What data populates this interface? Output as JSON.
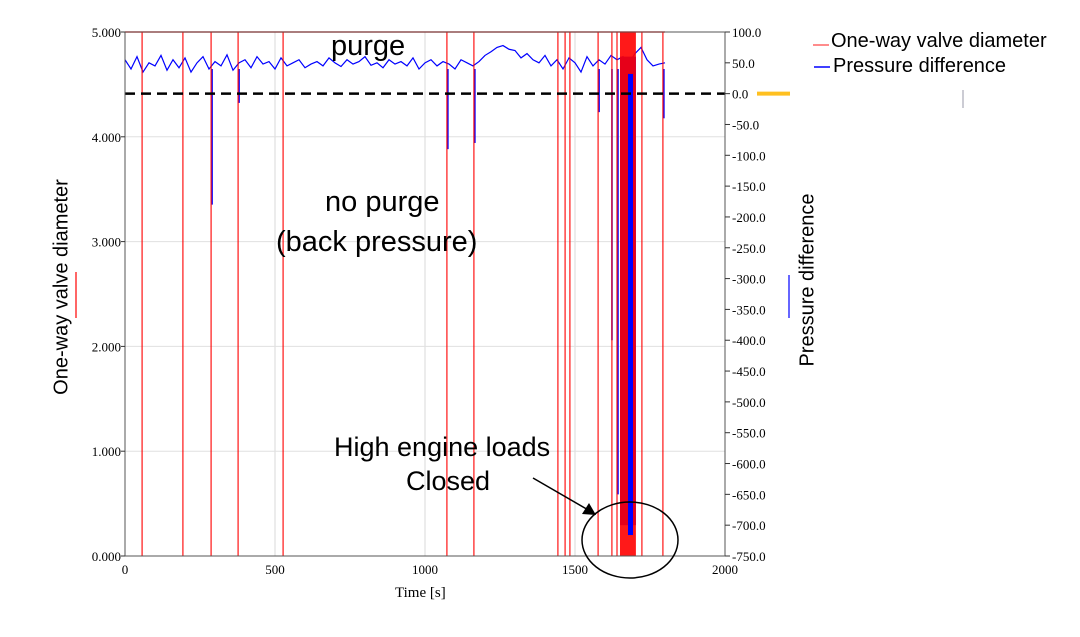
{
  "chart_data": {
    "type": "line",
    "xlabel": "Time [s]",
    "ylabel_left": "One-way valve diameter",
    "ylabel_right": "Pressure difference",
    "xlim": [
      0,
      2000
    ],
    "ylim_left": [
      0,
      5
    ],
    "ylim_right": [
      -750,
      100
    ],
    "x_ticks": [
      "0",
      "500",
      "1000",
      "1500",
      "2000"
    ],
    "left_ticks": [
      "0.000",
      "1.000",
      "2.000",
      "3.000",
      "4.000",
      "5.000"
    ],
    "right_ticks": [
      "100.0",
      "50.0",
      "0.0",
      "-50.0",
      "-100.0",
      "-150.0",
      "-200.0",
      "-250.0",
      "-300.0",
      "-350.0",
      "-400.0",
      "-450.0",
      "-500.0",
      "-550.0",
      "-600.0",
      "-650.0",
      "-700.0",
      "-750.0"
    ],
    "grid": true,
    "legend": {
      "placement": "top-right",
      "entries": [
        "One-way valve diameter",
        "Pressure difference"
      ]
    },
    "colors": {
      "valve": "#ff0000",
      "pressure": "#0000ff",
      "zero_line": "#000000",
      "marker": "#ffc020"
    },
    "series": [
      {
        "name": "One-way valve diameter",
        "axis": "left",
        "open_value": 5.0,
        "closed_value": 0.0,
        "span": [
          0,
          1800
        ],
        "closed_times": [
          57,
          193,
          287,
          377,
          527,
          1073,
          1163,
          1443,
          1467,
          1483,
          1577,
          1623,
          1640,
          1723,
          1793
        ],
        "closed_interval": [
          1650,
          1703
        ]
      },
      {
        "name": "Pressure difference",
        "axis": "right",
        "x_step": 20,
        "values": [
          55,
          40,
          60,
          35,
          50,
          45,
          62,
          38,
          55,
          42,
          58,
          35,
          50,
          60,
          40,
          52,
          45,
          63,
          38,
          50,
          55,
          42,
          60,
          48,
          52,
          40,
          58,
          45,
          50,
          55,
          42,
          48,
          52,
          45,
          58,
          50,
          44,
          55,
          48,
          52,
          60,
          46,
          50,
          42,
          55,
          48,
          52,
          45,
          58,
          40,
          50,
          55,
          45,
          52,
          48,
          40,
          55,
          50,
          45,
          52,
          62,
          68,
          75,
          78,
          72,
          70,
          58,
          65,
          55,
          50,
          62,
          45,
          55,
          40,
          58,
          50,
          35,
          60,
          45,
          55,
          48,
          62,
          55,
          60,
          50,
          65,
          75,
          55,
          45,
          48,
          50
        ],
        "dips": [
          {
            "t": 287,
            "min": -180
          },
          {
            "t": 377,
            "min": -15
          },
          {
            "t": 1073,
            "min": -90
          },
          {
            "t": 1163,
            "min": -80
          },
          {
            "t": 1577,
            "min": -30
          },
          {
            "t": 1620,
            "min": -400
          },
          {
            "t": 1640,
            "min": -650
          },
          {
            "t": 1793,
            "min": -40
          }
        ],
        "dip_interval": {
          "range": [
            1650,
            1703
          ],
          "min": -700
        }
      }
    ],
    "reference_line": {
      "value": 0.0,
      "axis": "right",
      "style": "dashed"
    },
    "annotations": {
      "purge": "purge",
      "no_purge_1": "no purge",
      "no_purge_2": "(back pressure)",
      "high_1": "High engine loads",
      "high_2": "Closed"
    }
  }
}
